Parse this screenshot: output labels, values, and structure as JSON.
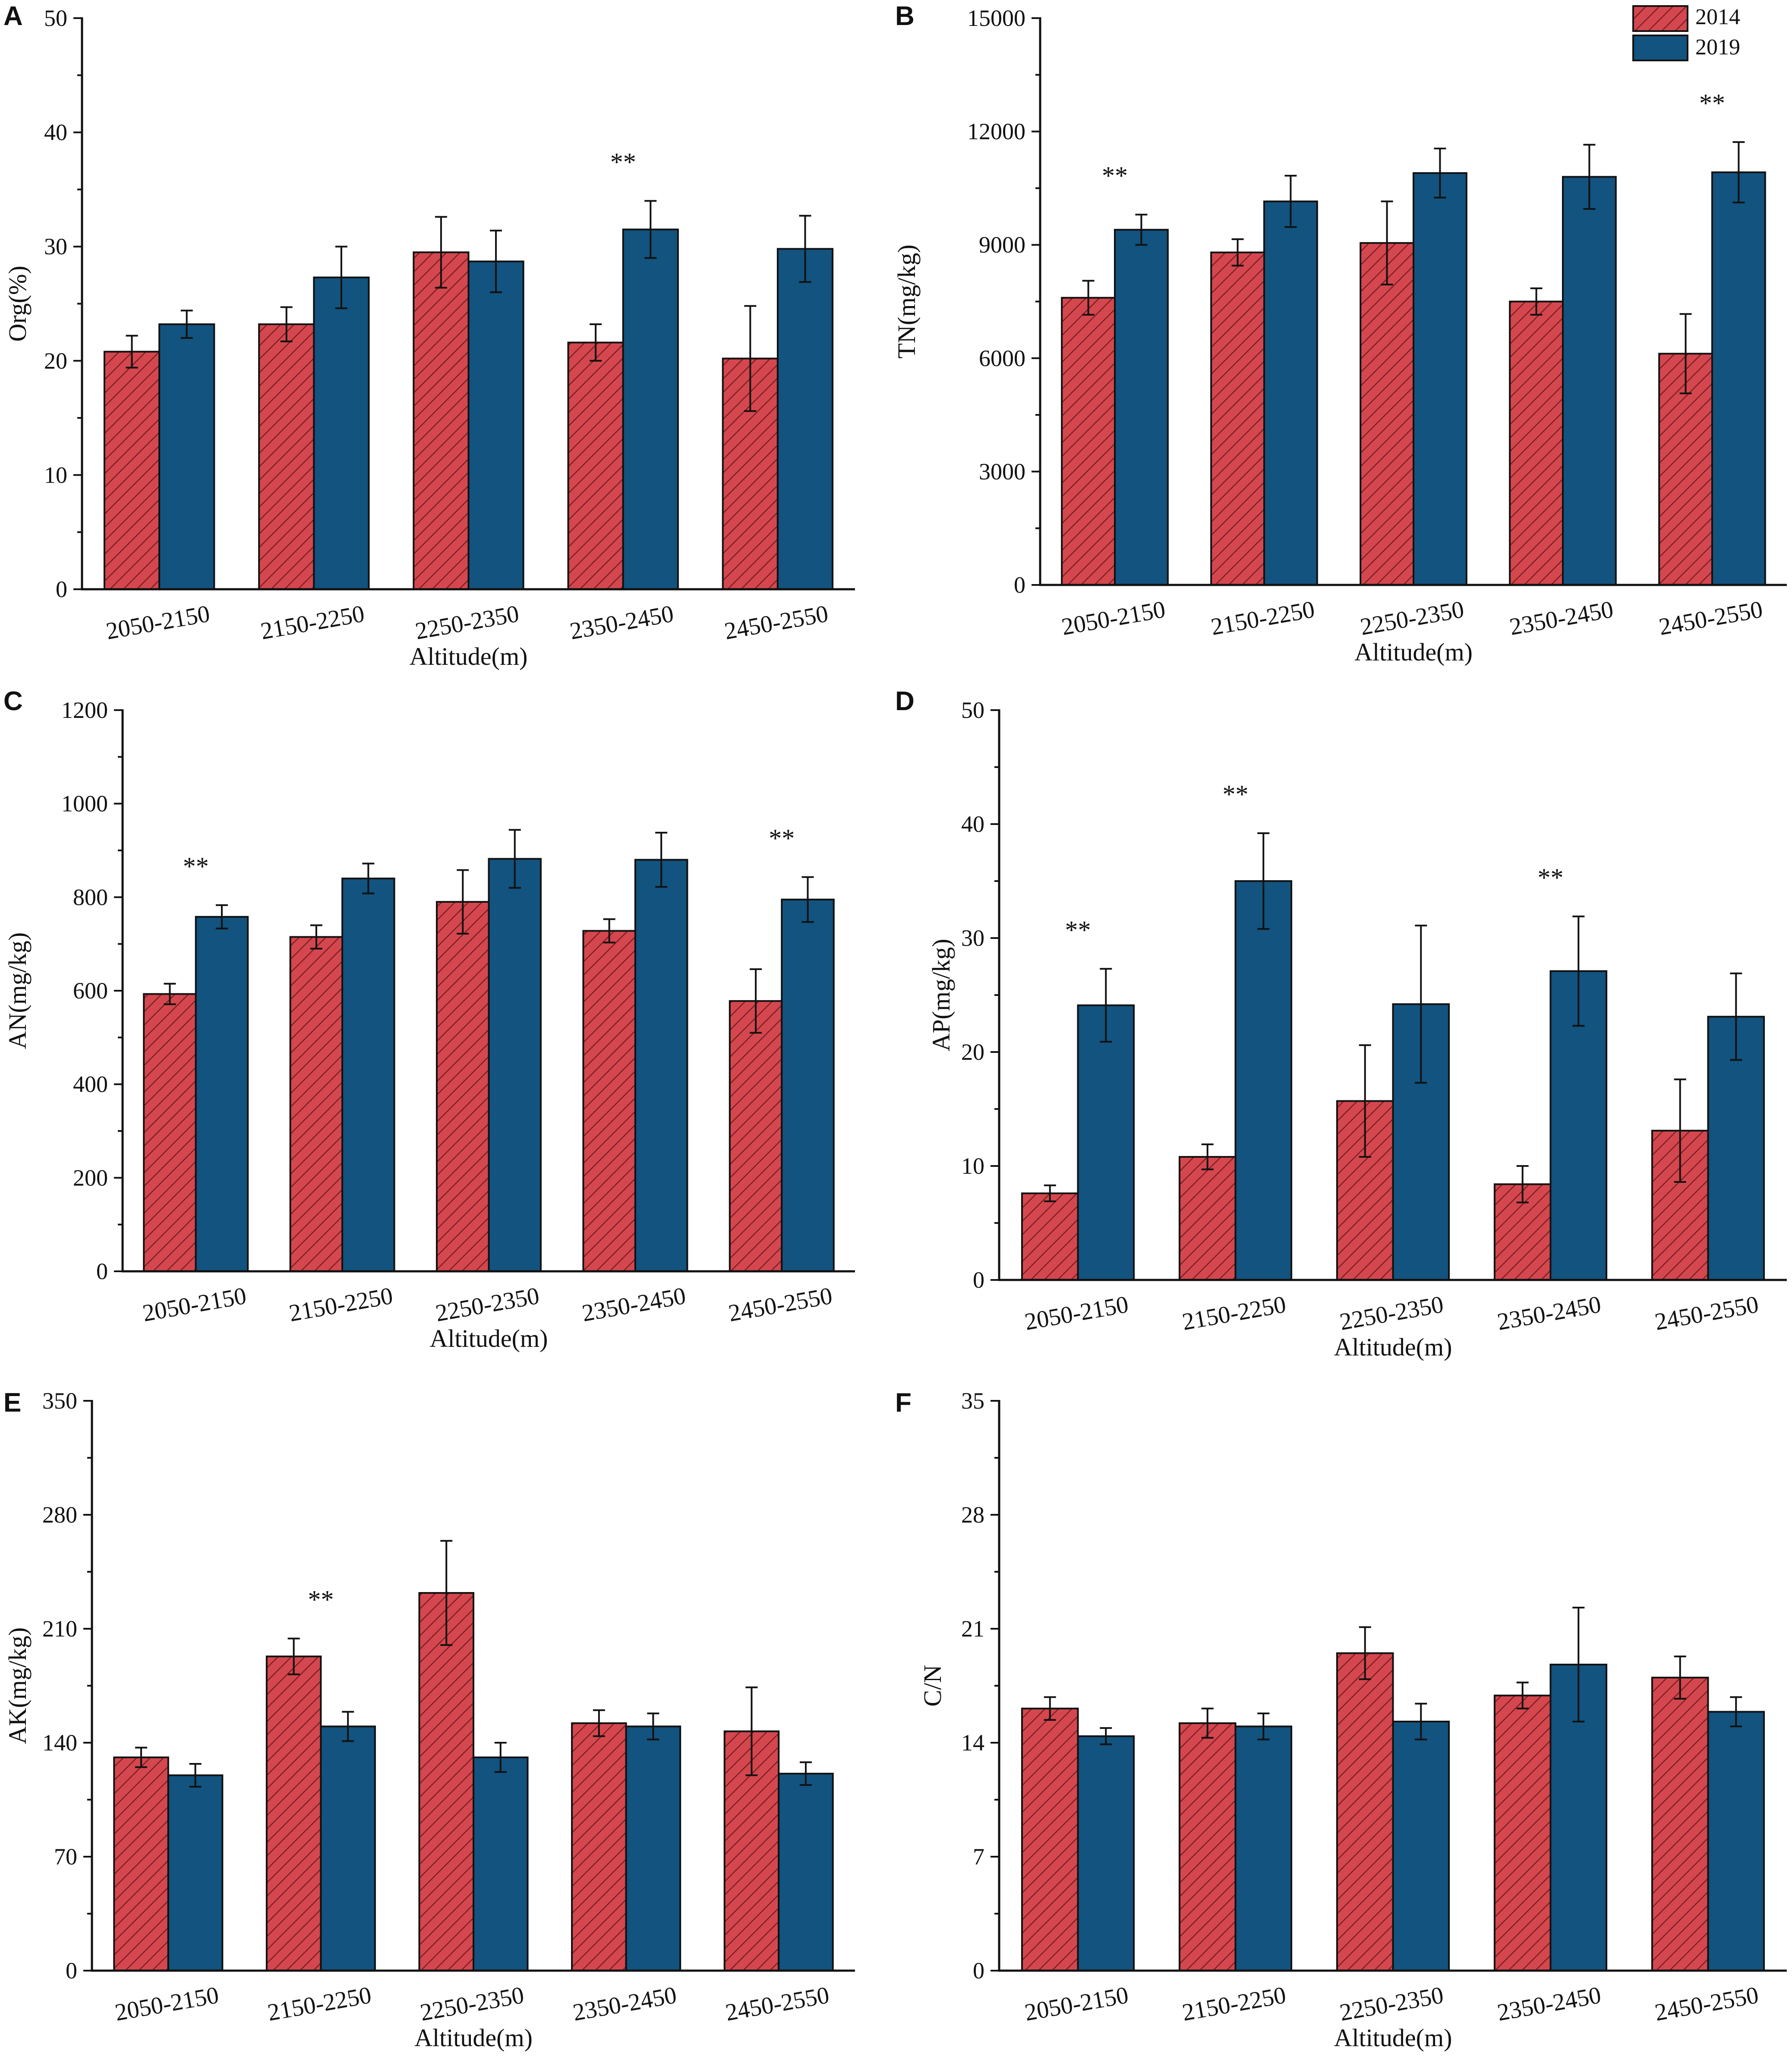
{
  "colors": {
    "y2014": "#D5474E",
    "y2019": "#12537F",
    "hatch": "#7A1F24",
    "axis": "#111111"
  },
  "legend": {
    "entries": [
      "2014",
      "2019"
    ]
  },
  "chart_data": [
    {
      "panel": "A",
      "type": "bar",
      "ylabel": "Org(%)",
      "xlabel": "Altitude(m)",
      "categories": [
        "2050-2150",
        "2150-2250",
        "2250-2350",
        "2350-2450",
        "2450-2550"
      ],
      "ylim": [
        0,
        50
      ],
      "yticks": [
        0,
        10,
        20,
        30,
        40,
        50
      ],
      "series": [
        {
          "name": "2014",
          "values": [
            20.8,
            23.2,
            29.5,
            21.6,
            20.2
          ],
          "errors": [
            1.4,
            1.5,
            3.1,
            1.6,
            4.6
          ]
        },
        {
          "name": "2019",
          "values": [
            23.2,
            27.3,
            28.7,
            31.5,
            29.8
          ],
          "errors": [
            1.2,
            2.7,
            2.7,
            2.5,
            2.9
          ]
        }
      ],
      "significance": [
        {
          "category": "2350-2450",
          "label": "**"
        }
      ]
    },
    {
      "panel": "B",
      "type": "bar",
      "ylabel": "TN(mg/kg)",
      "xlabel": "Altitude(m)",
      "categories": [
        "2050-2150",
        "2150-2250",
        "2250-2350",
        "2350-2450",
        "2450-2550"
      ],
      "ylim": [
        0,
        15000
      ],
      "yticks": [
        0,
        3000,
        6000,
        9000,
        12000,
        15000
      ],
      "series": [
        {
          "name": "2014",
          "values": [
            7600,
            8800,
            9050,
            7500,
            6120
          ],
          "errors": [
            450,
            350,
            1100,
            350,
            1050
          ]
        },
        {
          "name": "2019",
          "values": [
            9400,
            10150,
            10900,
            10800,
            10920
          ],
          "errors": [
            400,
            680,
            650,
            850,
            800
          ]
        }
      ],
      "significance": [
        {
          "category": "2050-2150",
          "label": "**"
        },
        {
          "category": "2450-2550",
          "label": "**"
        }
      ]
    },
    {
      "panel": "C",
      "type": "bar",
      "ylabel": "AN(mg/kg)",
      "xlabel": "Altitude(m)",
      "categories": [
        "2050-2150",
        "2150-2250",
        "2250-2350",
        "2350-2450",
        "2450-2550"
      ],
      "ylim": [
        0,
        1200
      ],
      "yticks": [
        0,
        200,
        400,
        600,
        800,
        1000,
        1200
      ],
      "series": [
        {
          "name": "2014",
          "values": [
            593,
            715,
            790,
            728,
            578
          ],
          "errors": [
            22,
            25,
            68,
            25,
            68
          ]
        },
        {
          "name": "2019",
          "values": [
            758,
            840,
            882,
            880,
            795
          ],
          "errors": [
            25,
            32,
            62,
            58,
            48
          ]
        }
      ],
      "significance": [
        {
          "category": "2050-2150",
          "label": "**"
        },
        {
          "category": "2450-2550",
          "label": "**"
        }
      ]
    },
    {
      "panel": "D",
      "type": "bar",
      "ylabel": "AP(mg/kg)",
      "xlabel": "Altitude(m)",
      "categories": [
        "2050-2150",
        "2150-2250",
        "2250-2350",
        "2350-2450",
        "2450-2550"
      ],
      "ylim": [
        0,
        50
      ],
      "yticks": [
        0,
        10,
        20,
        30,
        40,
        50
      ],
      "series": [
        {
          "name": "2014",
          "values": [
            7.6,
            10.8,
            15.7,
            8.4,
            13.1
          ],
          "errors": [
            0.7,
            1.1,
            4.9,
            1.6,
            4.5
          ]
        },
        {
          "name": "2019",
          "values": [
            24.1,
            35.0,
            24.2,
            27.1,
            23.1
          ],
          "errors": [
            3.2,
            4.2,
            6.9,
            4.8,
            3.8
          ]
        }
      ],
      "significance": [
        {
          "category": "2050-2150",
          "label": "**"
        },
        {
          "category": "2150-2250",
          "label": "**"
        },
        {
          "category": "2350-2450",
          "label": "**"
        }
      ]
    },
    {
      "panel": "E",
      "type": "bar",
      "ylabel": "AK(mg/kg)",
      "xlabel": "Altitude(m)",
      "categories": [
        "2050-2150",
        "2150-2250",
        "2250-2350",
        "2350-2450",
        "2450-2550"
      ],
      "ylim": [
        0,
        350
      ],
      "yticks": [
        0,
        70,
        140,
        210,
        280,
        350
      ],
      "series": [
        {
          "name": "2014",
          "values": [
            131,
            193,
            232,
            152,
            147
          ],
          "errors": [
            6,
            11,
            32,
            8,
            27
          ]
        },
        {
          "name": "2019",
          "values": [
            120,
            150,
            131,
            150,
            121
          ],
          "errors": [
            7,
            9,
            9,
            8,
            7
          ]
        }
      ],
      "significance": [
        {
          "category": "2150-2250",
          "label": "**"
        }
      ]
    },
    {
      "panel": "F",
      "type": "bar",
      "ylabel": "C/N",
      "xlabel": "Altitude(m)",
      "categories": [
        "2050-2150",
        "2150-2250",
        "2250-2350",
        "2350-2450",
        "2450-2550"
      ],
      "ylim": [
        0,
        35
      ],
      "yticks": [
        0,
        7,
        14,
        21,
        28,
        35
      ],
      "series": [
        {
          "name": "2014",
          "values": [
            16.1,
            15.2,
            19.5,
            16.9,
            18.0
          ],
          "errors": [
            0.7,
            0.9,
            1.6,
            0.8,
            1.3
          ]
        },
        {
          "name": "2019",
          "values": [
            14.4,
            15.0,
            15.3,
            18.8,
            15.9
          ],
          "errors": [
            0.5,
            0.8,
            1.1,
            3.5,
            0.9
          ]
        }
      ],
      "significance": []
    }
  ]
}
